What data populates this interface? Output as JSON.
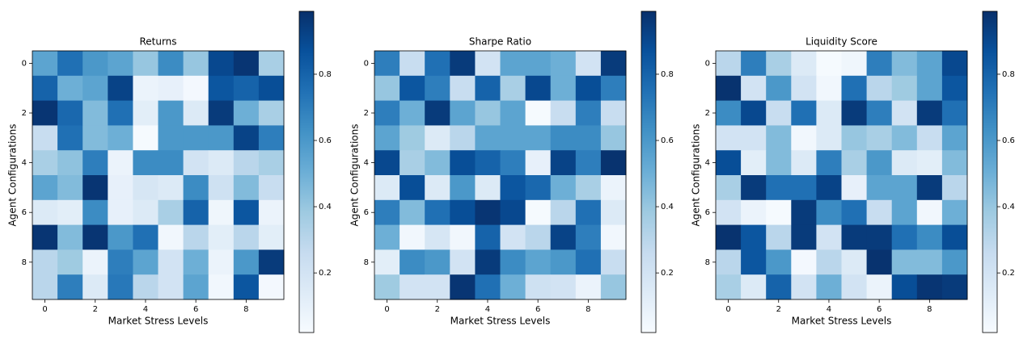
{
  "chart_data": [
    {
      "type": "heatmap",
      "title": "Returns",
      "x_label": "Market Stress Levels",
      "y_label": "Agent Configurations",
      "colormap": "Blues",
      "xlim": [
        -0.5,
        9.5
      ],
      "ylim": [
        9.5,
        -0.5
      ],
      "xticks": [
        0,
        2,
        4,
        6,
        8
      ],
      "yticks": [
        0,
        2,
        4,
        6,
        8
      ],
      "clim": [
        0.02,
        0.99
      ],
      "cticks": [
        0.2,
        0.4,
        0.6,
        0.8
      ],
      "values": [
        [
          0.55,
          0.75,
          0.6,
          0.55,
          0.4,
          0.65,
          0.4,
          0.9,
          0.97,
          0.35
        ],
        [
          0.8,
          0.5,
          0.55,
          0.92,
          0.08,
          0.1,
          0.04,
          0.85,
          0.8,
          0.88
        ],
        [
          0.97,
          0.78,
          0.45,
          0.75,
          0.12,
          0.6,
          0.15,
          0.95,
          0.5,
          0.35
        ],
        [
          0.25,
          0.75,
          0.45,
          0.5,
          0.03,
          0.6,
          0.6,
          0.6,
          0.92,
          0.7
        ],
        [
          0.35,
          0.42,
          0.7,
          0.08,
          0.65,
          0.65,
          0.2,
          0.15,
          0.3,
          0.35
        ],
        [
          0.55,
          0.45,
          0.97,
          0.1,
          0.18,
          0.15,
          0.65,
          0.22,
          0.45,
          0.25
        ],
        [
          0.15,
          0.12,
          0.65,
          0.1,
          0.15,
          0.35,
          0.8,
          0.06,
          0.85,
          0.08
        ],
        [
          0.97,
          0.45,
          0.97,
          0.6,
          0.75,
          0.05,
          0.3,
          0.12,
          0.3,
          0.12
        ],
        [
          0.3,
          0.38,
          0.08,
          0.7,
          0.55,
          0.2,
          0.5,
          0.08,
          0.6,
          0.95
        ],
        [
          0.3,
          0.7,
          0.15,
          0.72,
          0.3,
          0.2,
          0.55,
          0.05,
          0.85,
          0.04
        ]
      ]
    },
    {
      "type": "heatmap",
      "title": "Sharpe Ratio",
      "x_label": "Market Stress Levels",
      "y_label": "Agent Configurations",
      "colormap": "Blues",
      "xlim": [
        -0.5,
        9.5
      ],
      "ylim": [
        9.5,
        -0.5
      ],
      "xticks": [
        0,
        2,
        4,
        6,
        8
      ],
      "yticks": [
        0,
        2,
        4,
        6,
        8
      ],
      "clim": [
        0.02,
        0.99
      ],
      "cticks": [
        0.2,
        0.4,
        0.6,
        0.8
      ],
      "values": [
        [
          0.7,
          0.25,
          0.75,
          0.95,
          0.2,
          0.55,
          0.55,
          0.5,
          0.2,
          0.95
        ],
        [
          0.4,
          0.85,
          0.7,
          0.25,
          0.8,
          0.35,
          0.9,
          0.5,
          0.88,
          0.7
        ],
        [
          0.7,
          0.5,
          0.95,
          0.55,
          0.4,
          0.55,
          0.03,
          0.25,
          0.7,
          0.25
        ],
        [
          0.55,
          0.38,
          0.15,
          0.3,
          0.55,
          0.55,
          0.55,
          0.65,
          0.65,
          0.4
        ],
        [
          0.9,
          0.35,
          0.45,
          0.88,
          0.8,
          0.7,
          0.1,
          0.92,
          0.7,
          0.98
        ],
        [
          0.15,
          0.88,
          0.15,
          0.6,
          0.15,
          0.85,
          0.78,
          0.5,
          0.35,
          0.08
        ],
        [
          0.7,
          0.45,
          0.75,
          0.88,
          0.97,
          0.9,
          0.03,
          0.3,
          0.75,
          0.15
        ],
        [
          0.5,
          0.05,
          0.18,
          0.05,
          0.8,
          0.2,
          0.3,
          0.92,
          0.7,
          0.05
        ],
        [
          0.12,
          0.65,
          0.6,
          0.2,
          0.95,
          0.65,
          0.55,
          0.6,
          0.75,
          0.25
        ],
        [
          0.38,
          0.2,
          0.2,
          0.97,
          0.75,
          0.5,
          0.22,
          0.2,
          0.08,
          0.4
        ]
      ]
    },
    {
      "type": "heatmap",
      "title": "Liquidity Score",
      "x_label": "Market Stress Levels",
      "y_label": "Agent Configurations",
      "colormap": "Blues",
      "xlim": [
        -0.5,
        9.5
      ],
      "ylim": [
        9.5,
        -0.5
      ],
      "xticks": [
        0,
        2,
        4,
        6,
        8
      ],
      "yticks": [
        0,
        2,
        4,
        6,
        8
      ],
      "clim": [
        0.02,
        0.99
      ],
      "cticks": [
        0.2,
        0.4,
        0.6,
        0.8
      ],
      "values": [
        [
          0.3,
          0.7,
          0.35,
          0.15,
          0.03,
          0.06,
          0.7,
          0.45,
          0.55,
          0.9
        ],
        [
          0.98,
          0.2,
          0.6,
          0.2,
          0.05,
          0.75,
          0.3,
          0.38,
          0.55,
          0.85
        ],
        [
          0.65,
          0.9,
          0.25,
          0.75,
          0.15,
          0.95,
          0.7,
          0.2,
          0.95,
          0.75
        ],
        [
          0.2,
          0.2,
          0.45,
          0.05,
          0.15,
          0.4,
          0.35,
          0.45,
          0.25,
          0.55
        ],
        [
          0.88,
          0.12,
          0.45,
          0.15,
          0.7,
          0.35,
          0.6,
          0.15,
          0.12,
          0.45
        ],
        [
          0.35,
          0.95,
          0.75,
          0.75,
          0.92,
          0.1,
          0.55,
          0.55,
          0.95,
          0.3
        ],
        [
          0.2,
          0.08,
          0.03,
          0.95,
          0.65,
          0.75,
          0.25,
          0.55,
          0.05,
          0.5
        ],
        [
          0.98,
          0.85,
          0.3,
          0.95,
          0.2,
          0.95,
          0.95,
          0.75,
          0.65,
          0.88
        ],
        [
          0.3,
          0.85,
          0.6,
          0.04,
          0.3,
          0.15,
          0.98,
          0.45,
          0.45,
          0.6
        ],
        [
          0.35,
          0.15,
          0.8,
          0.2,
          0.5,
          0.2,
          0.08,
          0.88,
          0.97,
          0.95
        ]
      ]
    }
  ]
}
